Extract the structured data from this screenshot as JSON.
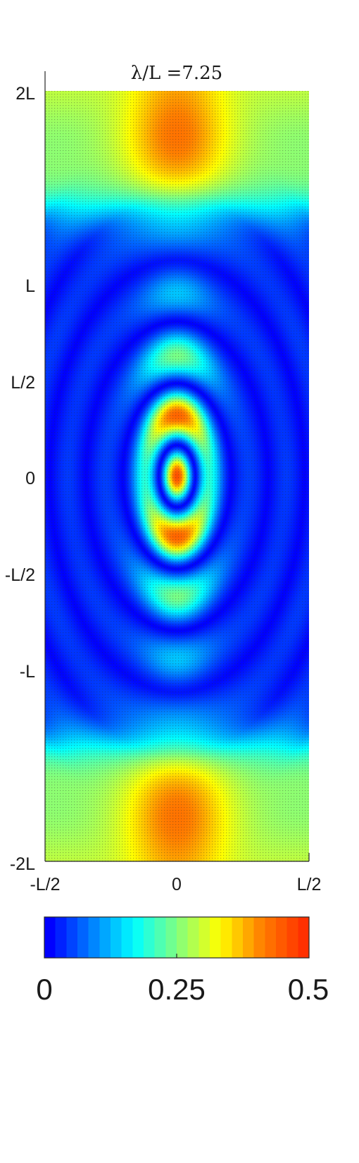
{
  "chart_data": {
    "type": "heatmap",
    "title": "λ/L =7.25",
    "xlabel": "",
    "ylabel": "",
    "x_ticks": [
      "-L/2",
      "0",
      "L/2"
    ],
    "y_ticks": [
      "2L",
      "L",
      "L/2",
      "0",
      "-L/2",
      "-L",
      "-2L"
    ],
    "y_tick_values": [
      2,
      1,
      0.5,
      0,
      -0.5,
      -1,
      -2
    ],
    "xlim": [
      -0.5,
      0.5
    ],
    "ylim": [
      -2,
      2
    ],
    "x_units": "L",
    "y_units": "L",
    "description": "intensity field with concentric elliptical fringes centred at (0,0); near-uniform bands toward top and bottom edges",
    "peak_value": 0.5,
    "colorbar": {
      "range": [
        0,
        0.5
      ],
      "ticks": [
        "0",
        "0.25",
        "0.5"
      ],
      "colormap": [
        "#0000ff",
        "#0080ff",
        "#00ffff",
        "#80ff80",
        "#ffff00",
        "#ff8000",
        "#ff3000"
      ]
    },
    "grid": false
  }
}
